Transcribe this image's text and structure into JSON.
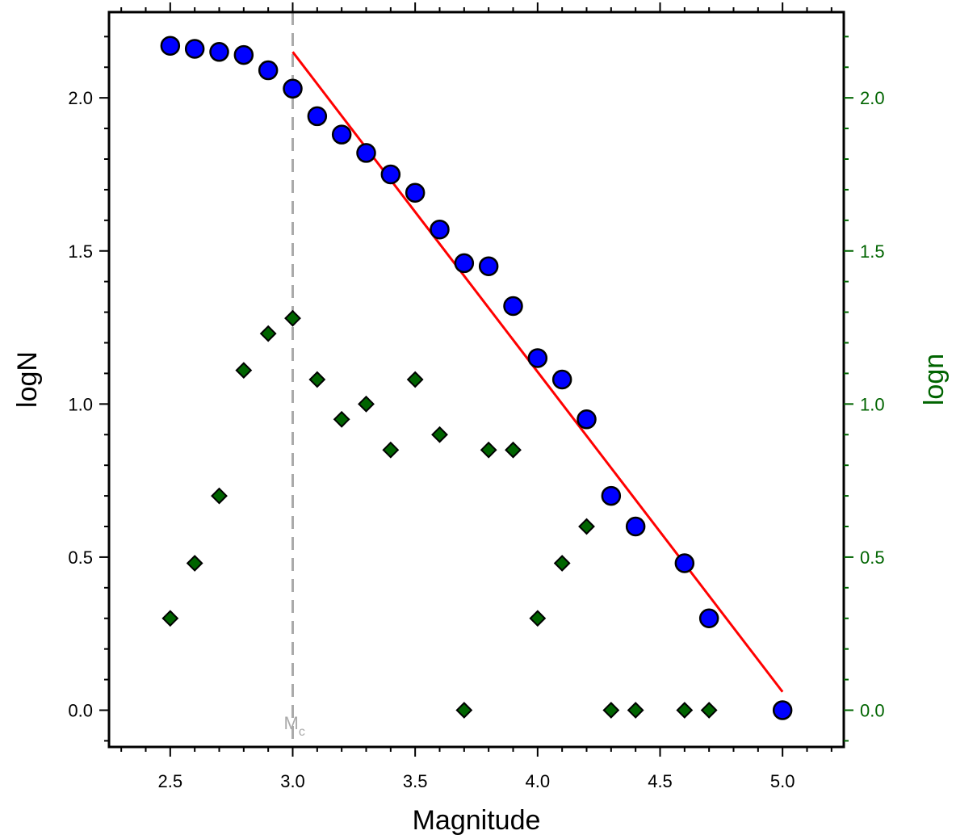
{
  "chart_data": {
    "type": "scatter",
    "xlabel": "Magnitude",
    "ylabel_left": "logN",
    "ylabel_right": "logn",
    "xlim": [
      2.25,
      5.25
    ],
    "ylim": [
      -0.12,
      2.28
    ],
    "x_ticks": [
      "2.5",
      "3.0",
      "3.5",
      "4.0",
      "4.5",
      "5.0"
    ],
    "y_ticks": [
      "0.0",
      "0.5",
      "1.0",
      "1.5",
      "2.0"
    ],
    "mc": {
      "x": 3.0,
      "label": "M",
      "subscript": "c"
    },
    "fit_line": {
      "x": [
        3.0,
        5.0
      ],
      "y": [
        2.15,
        0.06
      ]
    },
    "series": [
      {
        "name": "logN",
        "marker": "circle",
        "axis": "left",
        "x": [
          2.5,
          2.6,
          2.7,
          2.8,
          2.9,
          3.0,
          3.1,
          3.2,
          3.3,
          3.4,
          3.5,
          3.6,
          3.7,
          3.8,
          3.9,
          4.0,
          4.1,
          4.2,
          4.3,
          4.4,
          4.6,
          4.7,
          5.0
        ],
        "y": [
          2.17,
          2.16,
          2.15,
          2.14,
          2.09,
          2.03,
          1.94,
          1.88,
          1.82,
          1.75,
          1.69,
          1.57,
          1.46,
          1.45,
          1.32,
          1.15,
          1.08,
          0.95,
          0.7,
          0.6,
          0.48,
          0.3,
          0.0
        ]
      },
      {
        "name": "logn",
        "marker": "diamond",
        "axis": "right",
        "x": [
          2.5,
          2.6,
          2.7,
          2.8,
          2.9,
          3.0,
          3.1,
          3.2,
          3.3,
          3.4,
          3.5,
          3.6,
          3.7,
          3.8,
          3.9,
          4.0,
          4.1,
          4.2,
          4.3,
          4.4,
          4.6,
          4.7,
          5.0
        ],
        "y": [
          0.3,
          0.48,
          0.7,
          1.11,
          1.23,
          1.28,
          1.08,
          0.95,
          1.0,
          0.85,
          1.08,
          0.9,
          0.0,
          0.85,
          0.85,
          0.3,
          0.48,
          0.6,
          0.0,
          0.0,
          0.0,
          0.0,
          0.0
        ]
      }
    ],
    "colors": {
      "circle_fill": "#0000ff",
      "diamond_fill": "#006400",
      "right_axis": "#006400",
      "fit_line": "#ff0000",
      "mc_line": "#aaaaaa",
      "frame": "#000000"
    }
  }
}
